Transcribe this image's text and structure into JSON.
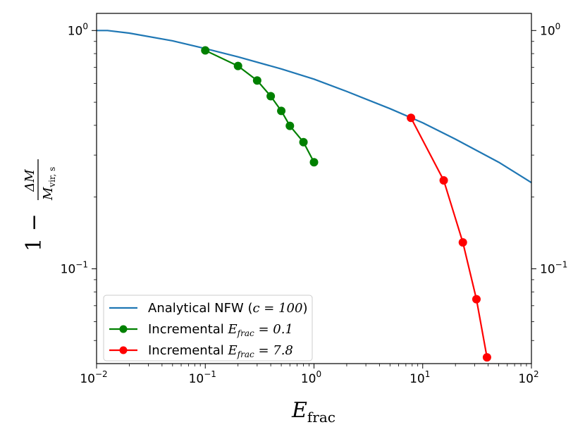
{
  "chart_data": {
    "type": "line",
    "xscale": "log",
    "yscale": "log",
    "xlim": [
      0.01,
      100
    ],
    "ylim": [
      0.04,
      1.18
    ],
    "xlabel": {
      "main": "E",
      "sub": "frac"
    },
    "ylabel": {
      "prefix": "1 −",
      "numerator": "ΔM",
      "denominator": "M",
      "denominator_sub": "vir, s"
    },
    "xticks": [
      {
        "value": 0.01,
        "base": "10",
        "exp": "−2"
      },
      {
        "value": 0.1,
        "base": "10",
        "exp": "−1"
      },
      {
        "value": 1,
        "base": "10",
        "exp": "0"
      },
      {
        "value": 10,
        "base": "10",
        "exp": "1"
      },
      {
        "value": 100,
        "base": "10",
        "exp": "2"
      }
    ],
    "yticks": [
      {
        "value": 1,
        "base": "10",
        "exp": "0"
      },
      {
        "value": 0.1,
        "base": "10",
        "exp": "−1"
      }
    ],
    "series": [
      {
        "name": "Analytical NFW (c = 100)",
        "color": "#1f77b4",
        "marker": false,
        "x": [
          0.01,
          0.0126,
          0.02,
          0.05,
          0.1,
          0.2,
          0.5,
          1,
          2,
          5,
          10,
          20,
          50,
          100
        ],
        "y": [
          1.0,
          1.0,
          0.975,
          0.905,
          0.84,
          0.775,
          0.69,
          0.625,
          0.555,
          0.47,
          0.41,
          0.35,
          0.28,
          0.23
        ]
      },
      {
        "name": "Incremental E_frac = 0.1",
        "color": "#008000",
        "marker": true,
        "x": [
          0.1,
          0.2,
          0.3,
          0.4,
          0.5,
          0.6,
          0.8,
          1.0
        ],
        "y": [
          0.825,
          0.71,
          0.617,
          0.53,
          0.46,
          0.398,
          0.34,
          0.28
        ]
      },
      {
        "name": "Incremental E_frac = 7.8",
        "color": "#ff0000",
        "marker": true,
        "x": [
          7.8,
          15.6,
          23.4,
          31.2,
          39.0
        ],
        "y": [
          0.43,
          0.235,
          0.129,
          0.0745,
          0.0425
        ]
      }
    ],
    "legend": {
      "position": "lower-left",
      "entries": [
        {
          "text": "Analytical NFW (",
          "math": "c",
          "math_sub": "",
          "math_rest": " = 100",
          "suffix": ")"
        },
        {
          "text": "Incremental ",
          "math": "E",
          "math_sub": "frac",
          "math_rest": " = 0.1",
          "suffix": ""
        },
        {
          "text": "Incremental ",
          "math": "E",
          "math_sub": "frac",
          "math_rest": " = 7.8",
          "suffix": ""
        }
      ]
    }
  }
}
